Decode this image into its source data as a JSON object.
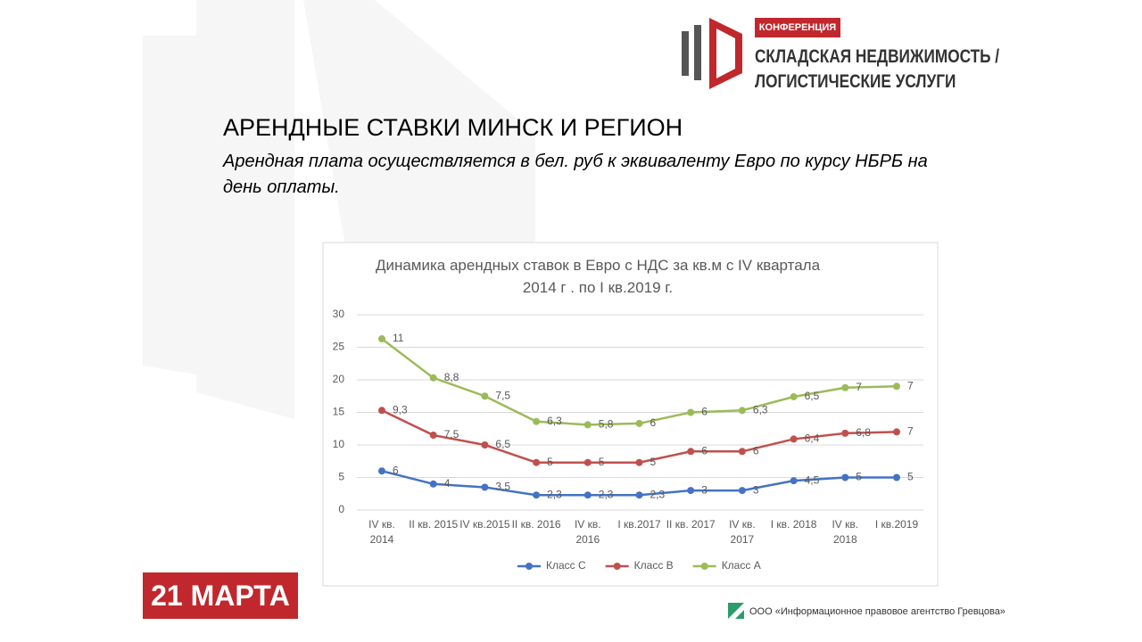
{
  "slide": {
    "logo_badge": "КОНФЕРЕНЦИЯ",
    "logo_line1": "СКЛАДСКАЯ НЕДВИЖИМОСТЬ /",
    "logo_line2": "ЛОГИСТИЧЕСКИЕ УСЛУГИ",
    "heading": "АРЕНДНЫЕ СТАВКИ МИНСК И РЕГИОН",
    "subheading": "Арендная плата  осуществляется  в бел. руб к эквиваленту Евро по курсу НБРБ на день оплаты.",
    "date": "21 МАРТА",
    "footer": "ООО «Информационное правовое агентство Гревцова»"
  },
  "chart_data": {
    "type": "line",
    "stacked": true,
    "title": "Динамика арендных ставок в Евро с НДС за кв.м с IV квартала 2014 г . по I  кв.2019 г.",
    "categories": [
      "IV кв. 2014",
      "II кв. 2015",
      "IV кв.2015",
      "II кв. 2016",
      "IV кв. 2016",
      "I кв.2017",
      "II кв. 2017",
      "IV кв. 2017",
      "I кв. 2018",
      "IV кв. 2018",
      "I кв.2019"
    ],
    "series": [
      {
        "name": "Класс С",
        "color": "#4472c4",
        "values": [
          6,
          4,
          3.5,
          2.3,
          2.3,
          2.3,
          3,
          3,
          4.5,
          5,
          5
        ],
        "value_labels": [
          "6",
          "4",
          "3,5",
          "2,3",
          "2,3",
          "2,3",
          "3",
          "3",
          "4,5",
          "5",
          "5"
        ]
      },
      {
        "name": "Класс В",
        "color": "#c0504d",
        "values": [
          9.3,
          7.5,
          6.5,
          5,
          5,
          5,
          6,
          6,
          6.4,
          6.8,
          7
        ],
        "value_labels": [
          "9,3",
          "7,5",
          "6,5",
          "5",
          "5",
          "5",
          "6",
          "6",
          "6,4",
          "6,8",
          "7"
        ]
      },
      {
        "name": "Класс А",
        "color": "#9bbb59",
        "values": [
          11,
          8.8,
          7.5,
          6.3,
          5.8,
          6,
          6,
          6.3,
          6.5,
          7,
          7
        ],
        "value_labels": [
          "11",
          "8,8",
          "7,5",
          "6,3",
          "5,8",
          "6",
          "6",
          "6,3",
          "6,5",
          "7",
          "7"
        ]
      }
    ],
    "ylim": [
      0,
      30
    ],
    "yticks": [
      0,
      5,
      10,
      15,
      20,
      25,
      30
    ],
    "grid": true,
    "legend": "bottom"
  }
}
